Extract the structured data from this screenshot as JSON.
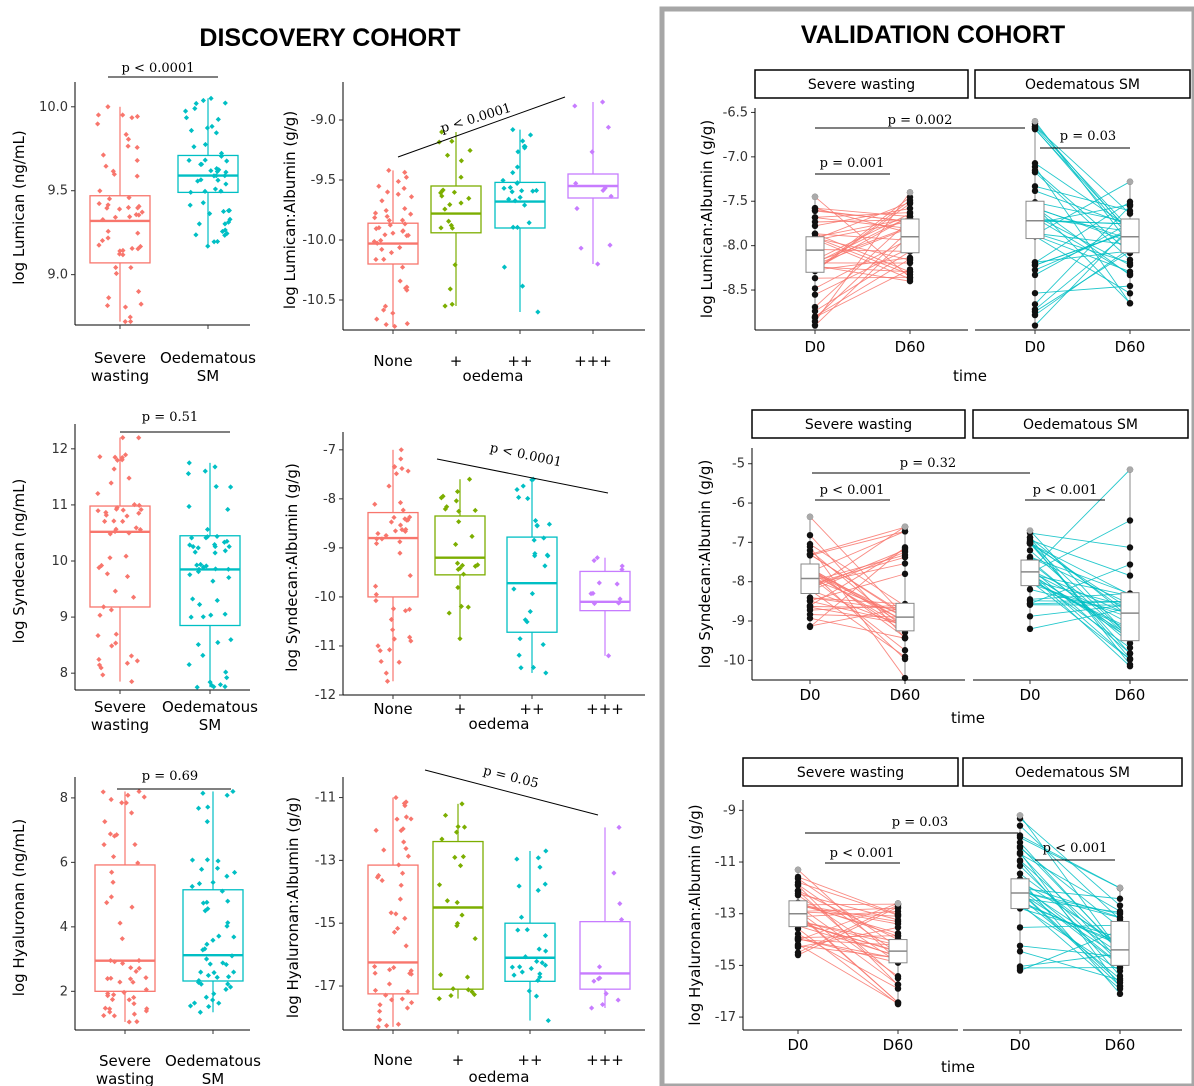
{
  "cohorts": {
    "discovery_title": "DISCOVERY COHORT",
    "validation_title": "VALIDATION COHORT"
  },
  "colors": {
    "sw": "#F8766D",
    "ed": "#00BFC4",
    "plus": "#7CAE00",
    "ppp": "#C77CFF",
    "divider": "#a6a6a6"
  },
  "chart_data": [
    {
      "id": "d1",
      "type": "box",
      "ylabel": "log Lumican (ng/mL)",
      "xlabel": "",
      "categories": [
        "Severe\nwasting",
        "Oedematous\nSM"
      ],
      "yticks": [
        9.0,
        9.5,
        10.0
      ],
      "ylim": [
        8.7,
        10.1
      ],
      "boxes": [
        {
          "q1": 9.07,
          "med": 9.32,
          "q3": 9.47,
          "lo": 8.72,
          "hi": 10.0
        },
        {
          "q1": 9.49,
          "med": 9.59,
          "q3": 9.71,
          "lo": 9.17,
          "hi": 10.05
        }
      ],
      "pvalues": [
        {
          "text": "p < 0.0001"
        }
      ]
    },
    {
      "id": "d2",
      "type": "box",
      "ylabel": "log Lumican:Albumin (g/g)",
      "xlabel": "oedema",
      "categories": [
        "None",
        "+",
        "++",
        "+++"
      ],
      "yticks": [
        -10.5,
        -10.0,
        -9.5,
        -9.0
      ],
      "ylim": [
        -10.75,
        -8.75
      ],
      "boxes": [
        {
          "q1": -10.2,
          "med": -10.03,
          "q3": -9.86,
          "lo": -10.72,
          "hi": -9.42
        },
        {
          "q1": -9.94,
          "med": -9.78,
          "q3": -9.55,
          "lo": -10.55,
          "hi": -9.1
        },
        {
          "q1": -9.9,
          "med": -9.68,
          "q3": -9.52,
          "lo": -10.6,
          "hi": -9.08
        },
        {
          "q1": -9.65,
          "med": -9.55,
          "q3": -9.45,
          "lo": -10.2,
          "hi": -8.85
        }
      ],
      "pvalues": [
        {
          "text": "p < 0.0001"
        }
      ]
    },
    {
      "id": "d3",
      "type": "box",
      "ylabel": "log Syndecan (ng/mL)",
      "xlabel": "",
      "categories": [
        "Severe\nwasting",
        "Oedematous\nSM"
      ],
      "yticks": [
        8,
        9,
        10,
        11,
        12
      ],
      "ylim": [
        7.7,
        12.3
      ],
      "boxes": [
        {
          "q1": 9.18,
          "med": 10.52,
          "q3": 10.98,
          "lo": 7.85,
          "hi": 12.2
        },
        {
          "q1": 8.85,
          "med": 9.85,
          "q3": 10.45,
          "lo": 7.75,
          "hi": 11.75
        }
      ],
      "pvalues": [
        {
          "text": "p = 0.51"
        }
      ]
    },
    {
      "id": "d4",
      "type": "box",
      "ylabel": "log Syndecan:Albumin (g/g)",
      "xlabel": "oedema",
      "categories": [
        "None",
        "+",
        "++",
        "+++"
      ],
      "yticks": [
        -12,
        -11,
        -10,
        -9,
        -8,
        -7
      ],
      "ylim": [
        -12,
        -6.8
      ],
      "boxes": [
        {
          "q1": -10.0,
          "med": -8.8,
          "q3": -8.28,
          "lo": -11.72,
          "hi": -7.0
        },
        {
          "q1": -9.55,
          "med": -9.2,
          "q3": -8.35,
          "lo": -10.85,
          "hi": -7.6
        },
        {
          "q1": -10.72,
          "med": -9.72,
          "q3": -8.78,
          "lo": -11.55,
          "hi": -7.6
        },
        {
          "q1": -10.28,
          "med": -10.1,
          "q3": -9.48,
          "lo": -11.2,
          "hi": -9.2
        }
      ],
      "pvalues": [
        {
          "text": "p < 0.0001"
        }
      ]
    },
    {
      "id": "d5",
      "type": "box",
      "ylabel": "log Hyaluronan (ng/mL)",
      "xlabel": "",
      "categories": [
        "Severe\nwasting",
        "Oedematous\nSM"
      ],
      "yticks": [
        2,
        4,
        6,
        8
      ],
      "ylim": [
        0.8,
        8.4
      ],
      "boxes": [
        {
          "q1": 2.0,
          "med": 2.95,
          "q3": 5.92,
          "lo": 1.05,
          "hi": 8.2
        },
        {
          "q1": 2.32,
          "med": 3.12,
          "q3": 5.15,
          "lo": 1.35,
          "hi": 8.2
        }
      ],
      "pvalues": [
        {
          "text": "p = 0.69"
        }
      ]
    },
    {
      "id": "d6",
      "type": "box",
      "ylabel": "log Hyaluronan:Albumin (g/g)",
      "xlabel": "oedema",
      "categories": [
        "None",
        "+",
        "++",
        "+++"
      ],
      "yticks": [
        -17,
        -15,
        -13,
        -11
      ],
      "ylim": [
        -18.4,
        -10.6
      ],
      "boxes": [
        {
          "q1": -17.25,
          "med": -16.25,
          "q3": -13.15,
          "lo": -18.3,
          "hi": -11.0
        },
        {
          "q1": -17.1,
          "med": -14.5,
          "q3": -12.4,
          "lo": -17.4,
          "hi": -11.2
        },
        {
          "q1": -16.85,
          "med": -16.1,
          "q3": -15.0,
          "lo": -18.1,
          "hi": -12.7
        },
        {
          "q1": -17.1,
          "med": -16.6,
          "q3": -14.95,
          "lo": -17.7,
          "hi": -11.95
        }
      ],
      "pvalues": [
        {
          "text": "p = 0.05"
        }
      ]
    },
    {
      "id": "v1",
      "type": "paired",
      "ylabel": "log Lumican:Albumin (g/g)",
      "xlabel": "time",
      "facets": [
        "Severe wasting",
        "Oedematous SM"
      ],
      "categories": [
        "D0",
        "D60"
      ],
      "yticks": [
        -8.5,
        -8.0,
        -7.5,
        -7.0,
        -6.5
      ],
      "ylim": [
        -8.95,
        -6.45
      ],
      "boxes": [
        {
          "q1": -8.3,
          "med": -8.05,
          "q3": -7.9,
          "lo": -8.9,
          "hi": -7.45
        },
        {
          "q1": -8.08,
          "med": -7.9,
          "q3": -7.7,
          "lo": -8.4,
          "hi": -7.4
        },
        {
          "q1": -7.92,
          "med": -7.72,
          "q3": -7.5,
          "lo": -8.9,
          "hi": -6.6
        },
        {
          "q1": -8.08,
          "med": -7.9,
          "q3": -7.7,
          "lo": -8.65,
          "hi": -7.28
        }
      ],
      "pvalues": [
        {
          "text": "p = 0.002"
        },
        {
          "text": "p = 0.001"
        },
        {
          "text": "p = 0.03"
        }
      ]
    },
    {
      "id": "v2",
      "type": "paired",
      "ylabel": "log Syndecan:Albumin (g/g)",
      "xlabel": "time",
      "facets": [
        "Severe wasting",
        "Oedematous SM"
      ],
      "categories": [
        "D0",
        "D60"
      ],
      "yticks": [
        -10,
        -9,
        -8,
        -7,
        -6,
        -5
      ],
      "ylim": [
        -10.5,
        -4.6
      ],
      "boxes": [
        {
          "q1": -8.3,
          "med": -7.92,
          "q3": -7.55,
          "lo": -9.15,
          "hi": -6.35
        },
        {
          "q1": -9.25,
          "med": -8.9,
          "q3": -8.55,
          "lo": -10.45,
          "hi": -6.6
        },
        {
          "q1": -8.1,
          "med": -7.75,
          "q3": -7.45,
          "lo": -9.2,
          "hi": -6.7
        },
        {
          "q1": -9.5,
          "med": -8.8,
          "q3": -8.28,
          "lo": -10.15,
          "hi": -5.15
        }
      ],
      "pvalues": [
        {
          "text": "p = 0.32"
        },
        {
          "text": "p < 0.001"
        },
        {
          "text": "p < 0.001"
        }
      ]
    },
    {
      "id": "v3",
      "type": "paired",
      "ylabel": "log Hyaluronan:Albumin (g/g)",
      "xlabel": "time",
      "facets": [
        "Severe wasting",
        "Oedematous SM"
      ],
      "categories": [
        "D0",
        "D60"
      ],
      "yticks": [
        -17,
        -15,
        -13,
        -11,
        -9
      ],
      "ylim": [
        -17.5,
        -8.6
      ],
      "boxes": [
        {
          "q1": -13.5,
          "med": -13.0,
          "q3": -12.5,
          "lo": -14.6,
          "hi": -11.3
        },
        {
          "q1": -14.9,
          "med": -14.45,
          "q3": -14.0,
          "lo": -16.5,
          "hi": -12.6
        },
        {
          "q1": -12.8,
          "med": -12.2,
          "q3": -11.65,
          "lo": -15.2,
          "hi": -9.2
        },
        {
          "q1": -15.0,
          "med": -14.4,
          "q3": -13.3,
          "lo": -16.1,
          "hi": -12.0
        }
      ],
      "pvalues": [
        {
          "text": "p = 0.03"
        },
        {
          "text": "p < 0.001"
        },
        {
          "text": "p < 0.001"
        }
      ]
    }
  ]
}
